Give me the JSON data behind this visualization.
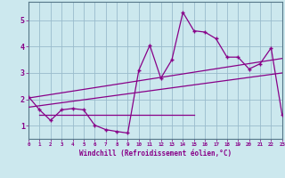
{
  "xlabel": "Windchill (Refroidissement éolien,°C)",
  "bg_color": "#cce8ee",
  "line_color": "#880088",
  "grid_color": "#99bbcc",
  "x_data": [
    0,
    1,
    2,
    3,
    4,
    5,
    6,
    7,
    8,
    9,
    10,
    11,
    12,
    13,
    14,
    15,
    16,
    17,
    18,
    19,
    20,
    21,
    22,
    23
  ],
  "y_data": [
    2.1,
    1.6,
    1.2,
    1.6,
    1.65,
    1.6,
    1.02,
    0.85,
    0.78,
    0.72,
    3.1,
    4.05,
    2.8,
    3.5,
    5.3,
    4.6,
    4.55,
    4.3,
    3.6,
    3.6,
    3.15,
    3.35,
    3.95,
    1.4
  ],
  "flat_trend_x": [
    1,
    15
  ],
  "flat_trend_y": [
    1.4,
    1.4
  ],
  "diag_trend1_x": [
    0,
    23
  ],
  "diag_trend1_y": [
    1.7,
    3.0
  ],
  "diag_trend2_x": [
    0,
    23
  ],
  "diag_trend2_y": [
    2.05,
    3.55
  ],
  "ylim": [
    0.5,
    5.7
  ],
  "xlim": [
    0,
    23
  ],
  "yticks": [
    1,
    2,
    3,
    4,
    5
  ],
  "xticks": [
    0,
    1,
    2,
    3,
    4,
    5,
    6,
    7,
    8,
    9,
    10,
    11,
    12,
    13,
    14,
    15,
    16,
    17,
    18,
    19,
    20,
    21,
    22,
    23
  ]
}
